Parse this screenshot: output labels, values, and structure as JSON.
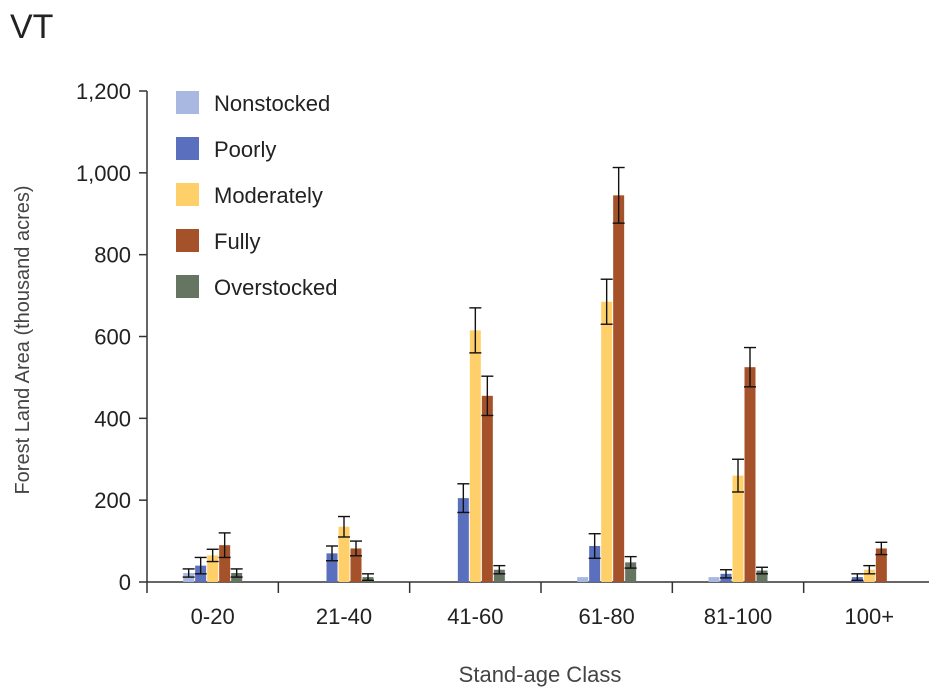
{
  "chart_data": {
    "type": "bar",
    "title": "VT",
    "xlabel": "Stand-age Class",
    "ylabel": "Forest Land  Area (thousand acres)",
    "ylim": [
      0,
      1200
    ],
    "yticks": [
      0,
      200,
      400,
      600,
      800,
      1000,
      1200
    ],
    "ytick_labels": [
      "0",
      "200",
      "400",
      "600",
      "800",
      "1,000",
      "1,200"
    ],
    "grid": false,
    "legend_position": "top-left",
    "categories": [
      "0-20",
      "21-40",
      "41-60",
      "61-80",
      "81-100",
      "100+"
    ],
    "series": [
      {
        "name": "Nonstocked",
        "color": "#A8B8E0",
        "values": [
          22,
          0,
          0,
          12,
          12,
          0
        ],
        "error": [
          10,
          0,
          0,
          0,
          0,
          0
        ]
      },
      {
        "name": "Poorly",
        "color": "#5A6FBD",
        "values": [
          40,
          70,
          205,
          88,
          20,
          12
        ],
        "error": [
          20,
          18,
          35,
          30,
          10,
          8
        ]
      },
      {
        "name": "Moderately",
        "color": "#FFD06A",
        "values": [
          65,
          135,
          615,
          685,
          260,
          30
        ],
        "error": [
          15,
          25,
          55,
          55,
          40,
          10
        ]
      },
      {
        "name": "Fully",
        "color": "#A5522A",
        "values": [
          90,
          82,
          455,
          945,
          525,
          82
        ],
        "error": [
          30,
          18,
          48,
          68,
          48,
          15
        ]
      },
      {
        "name": "Overstocked",
        "color": "#667562",
        "values": [
          22,
          12,
          30,
          48,
          28,
          0
        ],
        "error": [
          10,
          8,
          10,
          14,
          8,
          0
        ]
      }
    ]
  }
}
